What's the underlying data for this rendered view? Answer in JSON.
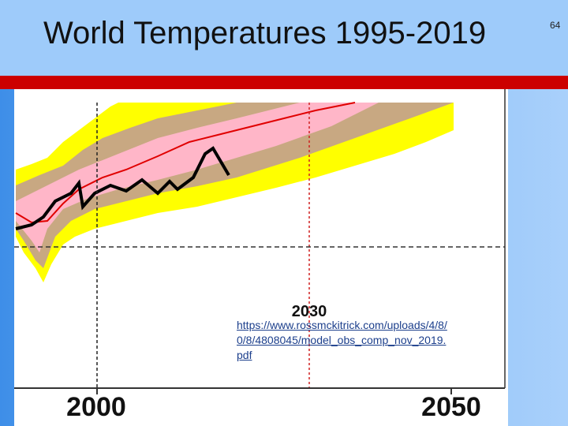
{
  "slide": {
    "title": "World Temperatures 1995-2019",
    "number": "64"
  },
  "figure": {
    "labels": {
      "left_year": "2000",
      "right_year": "2050",
      "mid_year": "2030"
    }
  },
  "link": {
    "lines": [
      "https://www.rossmckitrick.com/uploads/4/8/",
      "0/8/4808045/model_obs_comp_nov_2019.",
      "pdf"
    ]
  }
}
